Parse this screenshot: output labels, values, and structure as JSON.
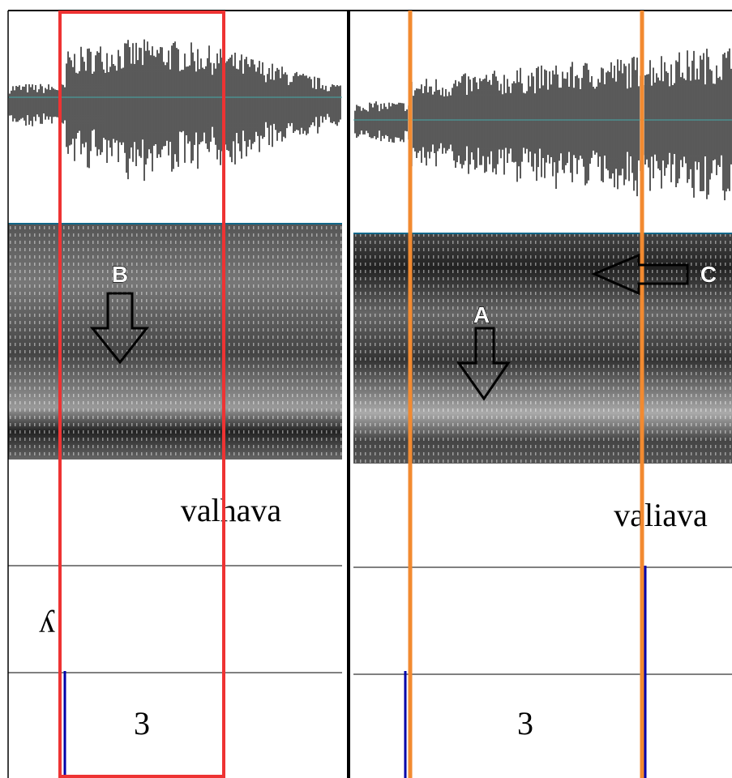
{
  "left_panel": {
    "word": "valhava",
    "tier2_label": "ʎ",
    "tier3_label": "3",
    "annotation": "B"
  },
  "right_panel": {
    "word": "valiava",
    "tier3_label": "3",
    "annotations": [
      "A",
      "C"
    ]
  }
}
